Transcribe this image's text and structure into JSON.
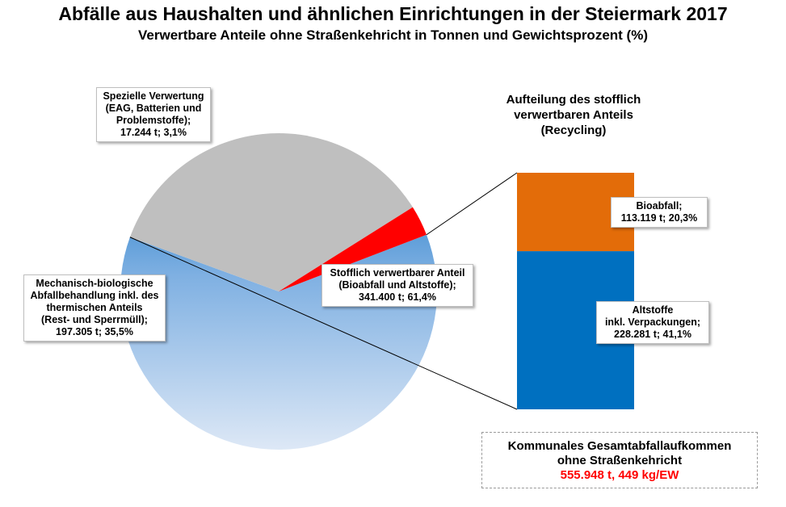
{
  "chart_data": [
    {
      "type": "pie",
      "title": "Abfälle aus Haushalten und ähnlichen Einrichtungen in der Steiermark 2017",
      "subtitle": "Verwertbare Anteile ohne Straßenkehricht in Tonnen und Gewichtsprozent (%)",
      "slices": [
        {
          "name": "Stofflich verwertbarer Anteil (Bioabfall und Altstoffe)",
          "value": 341400,
          "percent": 61.4,
          "color": "#0070c0",
          "label": "Stofflich verwertbarer Anteil\n(Bioabfall und Altstoffe);\n341.400  t;  61,4%"
        },
        {
          "name": "Mechanisch-biologische Abfallbehandlung inkl. des thermischen Anteils (Rest- und Sperrmüll)",
          "value": 197305,
          "percent": 35.5,
          "color": "#bfbfbf",
          "label": "Mechanisch-biologische\nAbfallbehandlung inkl. des\nthermischen Anteils\n(Rest-  und  Sperrmüll);\n197.305  t;  35,5%"
        },
        {
          "name": "Spezielle Verwertung (EAG, Batterien und Problemstoffe)",
          "value": 17244,
          "percent": 3.1,
          "color": "#ff0000",
          "label": "Spezielle Verwertung\n(EAG,  Batterien und\nProblemstoffe);\n17.244  t;  3,1%"
        }
      ]
    },
    {
      "type": "bar",
      "stacked": true,
      "title": "Aufteilung des stofflich\nverwertbaren Anteils\n(Recycling)",
      "segments": [
        {
          "name": "Altstoffe inkl. Verpackungen",
          "value": 228281,
          "percent": 41.1,
          "color": "#0070c0",
          "label": "Altstoffe\ninkl. Verpackungen;\n228.281  t;  41,1%"
        },
        {
          "name": "Bioabfall",
          "value": 113119,
          "percent": 20.3,
          "color": "#e36c09",
          "label": "Bioabfall;\n113.119  t;  20,3%"
        }
      ]
    }
  ],
  "total": {
    "line1": "Kommunales Gesamtabfallaufkommen",
    "line2": "ohne Straßenkehricht",
    "value": "555.948 t,  449 kg/EW"
  }
}
